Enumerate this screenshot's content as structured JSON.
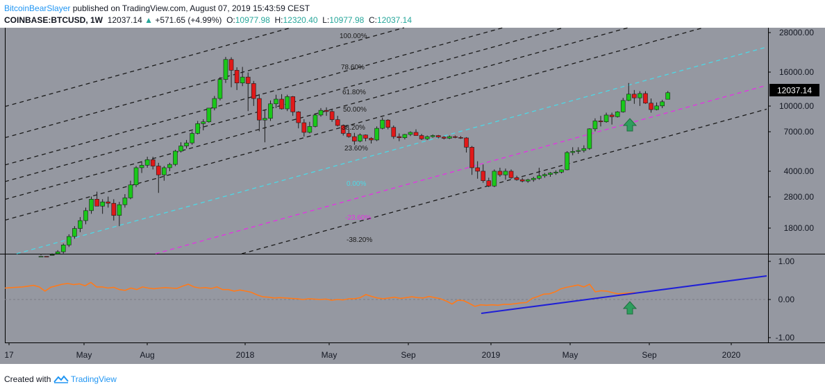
{
  "header": {
    "author": "BitcoinBearSlayer",
    "published_text": "published on TradingView.com, August 07, 2019 15:43:59 CEST",
    "symbol": "COINBASE:BTCUSD, 1W",
    "last": "12037.14",
    "change_arrow": "▲",
    "change": "+571.65 (+4.99%)",
    "o_label": "O:",
    "o_val": "10977.98",
    "h_label": "H:",
    "h_val": "12320.40",
    "l_label": "L:",
    "l_val": "10977.98",
    "c_label": "C:",
    "c_val": "12037.14"
  },
  "footer": {
    "created_with": "Created with",
    "brand": "TradingView"
  },
  "colors": {
    "background": "#9598a1",
    "bull": "#1ac81a",
    "bear": "#e01919",
    "fib_zero": "#4dd8e6",
    "fib_neg": "#e62fe6",
    "oscillator": "#ff7a1a",
    "trendline": "#1f1fd6",
    "arrow": "#2e9e5e"
  },
  "chart_data": [
    {
      "type": "candlestick",
      "title": "COINBASE:BTCUSD, 1W",
      "y_scale": "log",
      "y_ticks": [
        "28000.00",
        "16000.00",
        "10000.00",
        "7000.00",
        "4000.00",
        "2800.00",
        "1800.00"
      ],
      "x_ticks": [
        "17",
        "May",
        "Aug",
        "2018",
        "May",
        "Sep",
        "2019",
        "May",
        "Sep",
        "2020"
      ],
      "last_price_label": "12037.14",
      "fib_levels": [
        "100.00%",
        "78.60%",
        "61.80%",
        "50.00%",
        "38.20%",
        "23.60%",
        "0.00%",
        "-23.60%",
        "-38.20%"
      ],
      "candles_ohlc": [
        [
          1180,
          1230,
          1140,
          1210
        ],
        [
          1210,
          1250,
          1150,
          1190
        ],
        [
          1190,
          1260,
          1120,
          1240
        ],
        [
          1240,
          1320,
          1200,
          1290
        ],
        [
          1290,
          1450,
          1260,
          1420
        ],
        [
          1420,
          1650,
          1380,
          1600
        ],
        [
          1600,
          1850,
          1550,
          1790
        ],
        [
          1790,
          2100,
          1700,
          2000
        ],
        [
          2000,
          2400,
          1900,
          2300
        ],
        [
          2300,
          2800,
          2200,
          2700
        ],
        [
          2700,
          3000,
          2500,
          2450
        ],
        [
          2450,
          2700,
          2200,
          2600
        ],
        [
          2600,
          2800,
          2400,
          2550
        ],
        [
          2550,
          2700,
          2000,
          2150
        ],
        [
          2150,
          2600,
          1850,
          2500
        ],
        [
          2500,
          2900,
          2400,
          2750
        ],
        [
          2750,
          3500,
          2700,
          3300
        ],
        [
          3300,
          4300,
          3200,
          4200
        ],
        [
          4200,
          4600,
          3900,
          4350
        ],
        [
          4350,
          4900,
          4200,
          4700
        ],
        [
          4700,
          4900,
          4100,
          4300
        ],
        [
          4300,
          4500,
          2950,
          3800
        ],
        [
          3800,
          4300,
          3500,
          4200
        ],
        [
          4200,
          4500,
          4000,
          4400
        ],
        [
          4400,
          5400,
          4300,
          5300
        ],
        [
          5300,
          6000,
          5200,
          5700
        ],
        [
          5700,
          6200,
          5500,
          5950
        ],
        [
          5950,
          7000,
          5800,
          6800
        ],
        [
          6800,
          8100,
          6700,
          7800
        ],
        [
          7800,
          8300,
          7100,
          8000
        ],
        [
          8000,
          9700,
          7900,
          9700
        ],
        [
          9700,
          11500,
          9400,
          11100
        ],
        [
          11100,
          15000,
          10800,
          14500
        ],
        [
          14500,
          19900,
          13800,
          19200
        ],
        [
          19200,
          19800,
          13000,
          16500
        ],
        [
          16500,
          17200,
          12500,
          13800
        ],
        [
          13800,
          17300,
          13200,
          15000
        ],
        [
          15000,
          16000,
          9300,
          13700
        ],
        [
          13700,
          14200,
          10000,
          11100
        ],
        [
          11100,
          11800,
          7000,
          8200
        ],
        [
          8200,
          9500,
          6000,
          8400
        ],
        [
          8400,
          10800,
          8100,
          10300
        ],
        [
          10300,
          11700,
          9700,
          11000
        ],
        [
          11000,
          11800,
          9500,
          9600
        ],
        [
          9600,
          11700,
          9300,
          11400
        ],
        [
          11400,
          11500,
          8700,
          9200
        ],
        [
          9200,
          9300,
          7300,
          7900
        ],
        [
          7900,
          8300,
          6500,
          6900
        ],
        [
          6900,
          8000,
          6800,
          7500
        ],
        [
          7500,
          9000,
          7400,
          8800
        ],
        [
          8800,
          9700,
          8600,
          9400
        ],
        [
          9400,
          9800,
          8700,
          9250
        ],
        [
          9250,
          9500,
          8000,
          8250
        ],
        [
          8250,
          8700,
          7500,
          7600
        ],
        [
          7600,
          7700,
          6600,
          6800
        ],
        [
          6800,
          7200,
          6400,
          6500
        ],
        [
          6500,
          6850,
          5800,
          6100
        ],
        [
          6100,
          6800,
          6000,
          6650
        ],
        [
          6650,
          6700,
          6100,
          6350
        ],
        [
          6350,
          6450,
          5900,
          6200
        ],
        [
          6200,
          7500,
          6100,
          7300
        ],
        [
          7300,
          8500,
          7200,
          8200
        ],
        [
          8200,
          8300,
          7200,
          7400
        ],
        [
          7400,
          7600,
          6300,
          6500
        ],
        [
          6500,
          6800,
          6100,
          6400
        ],
        [
          6400,
          6750,
          6250,
          6700
        ],
        [
          6700,
          7000,
          6550,
          6900
        ],
        [
          6900,
          7200,
          6650,
          6600
        ],
        [
          6600,
          6750,
          6200,
          6300
        ],
        [
          6300,
          6600,
          6200,
          6500
        ],
        [
          6500,
          6700,
          6400,
          6600
        ],
        [
          6600,
          6650,
          6350,
          6450
        ],
        [
          6450,
          6550,
          6250,
          6350
        ],
        [
          6350,
          6600,
          6280,
          6500
        ],
        [
          6500,
          6600,
          6350,
          6420
        ],
        [
          6420,
          6550,
          6300,
          6380
        ],
        [
          6380,
          6450,
          5200,
          5600
        ],
        [
          5600,
          5700,
          3800,
          4200
        ],
        [
          4200,
          4600,
          3600,
          4000
        ],
        [
          4000,
          4400,
          3400,
          3500
        ],
        [
          3500,
          3650,
          3200,
          3250
        ],
        [
          3250,
          4100,
          3200,
          4000
        ],
        [
          4000,
          4200,
          3700,
          3800
        ],
        [
          3800,
          4150,
          3550,
          4000
        ],
        [
          4000,
          4100,
          3600,
          3650
        ],
        [
          3650,
          3750,
          3500,
          3550
        ],
        [
          3550,
          3650,
          3420,
          3480
        ],
        [
          3480,
          3600,
          3400,
          3550
        ],
        [
          3550,
          3700,
          3450,
          3620
        ],
        [
          3620,
          4200,
          3550,
          3750
        ],
        [
          3750,
          3900,
          3650,
          3820
        ],
        [
          3820,
          3950,
          3700,
          3900
        ],
        [
          3900,
          4050,
          3800,
          3950
        ],
        [
          3950,
          4100,
          3880,
          4080
        ],
        [
          4080,
          5300,
          4050,
          5200
        ],
        [
          5200,
          5600,
          5000,
          5280
        ],
        [
          5280,
          5600,
          5100,
          5350
        ],
        [
          5350,
          5750,
          5200,
          5500
        ],
        [
          5500,
          7300,
          5400,
          7250
        ],
        [
          7250,
          8400,
          7000,
          8100
        ],
        [
          8100,
          8700,
          7500,
          8000
        ],
        [
          8000,
          9100,
          7900,
          8800
        ],
        [
          8800,
          9100,
          7700,
          8600
        ],
        [
          8600,
          9300,
          8500,
          9200
        ],
        [
          9200,
          11200,
          9100,
          10800
        ],
        [
          10800,
          13800,
          10700,
          11800
        ],
        [
          11800,
          12500,
          10300,
          11200
        ],
        [
          11200,
          12300,
          10000,
          11900
        ],
        [
          11900,
          12300,
          10300,
          10400
        ],
        [
          10400,
          11100,
          9100,
          9500
        ],
        [
          9500,
          10500,
          9400,
          10000
        ],
        [
          10000,
          10900,
          9700,
          10600
        ],
        [
          10978,
          12320,
          10978,
          12037
        ]
      ]
    },
    {
      "type": "line",
      "title": "",
      "y_ticks": [
        "1.00",
        "0.00",
        "-1.00"
      ],
      "ylim": [
        -1.1,
        1.1
      ],
      "series": [
        {
          "values": [
            0.3,
            0.31,
            0.32,
            0.33,
            0.35,
            0.37,
            0.33,
            0.22,
            0.32,
            0.36,
            0.4,
            0.42,
            0.39,
            0.41,
            0.36,
            0.45,
            0.33,
            0.33,
            0.3,
            0.32,
            0.26,
            0.24,
            0.3,
            0.26,
            0.33,
            0.3,
            0.28,
            0.3,
            0.31,
            0.3,
            0.29,
            0.35,
            0.4,
            0.33,
            0.3,
            0.31,
            0.29,
            0.33,
            0.26,
            0.26,
            0.22,
            0.25,
            0.22,
            0.19,
            0.12,
            0.07,
            0.06,
            0.04,
            0.05,
            0.04,
            0.03,
            0.02,
            0.0,
            0.02,
            0.01,
            0.0,
            0.01,
            -0.02,
            0.0,
            -0.01,
            0.02,
            0.02,
            0.05,
            0.13,
            0.08,
            0.04,
            0.02,
            0.04,
            0.06,
            0.03,
            0.05,
            0.07,
            0.05,
            0.04,
            0.08,
            0.05,
            0.02,
            -0.04,
            -0.12,
            -0.02,
            -0.03,
            -0.1,
            -0.18,
            -0.14,
            -0.15,
            -0.14,
            -0.15,
            -0.13,
            -0.13,
            -0.11,
            -0.09,
            -0.08,
            0.03,
            0.08,
            0.14,
            0.15,
            0.2,
            0.28,
            0.32,
            0.35,
            0.38,
            0.33,
            0.4,
            0.2,
            0.23,
            0.22,
            0.18,
            0.15,
            0.16,
            0.17,
            0.18
          ]
        }
      ]
    }
  ]
}
